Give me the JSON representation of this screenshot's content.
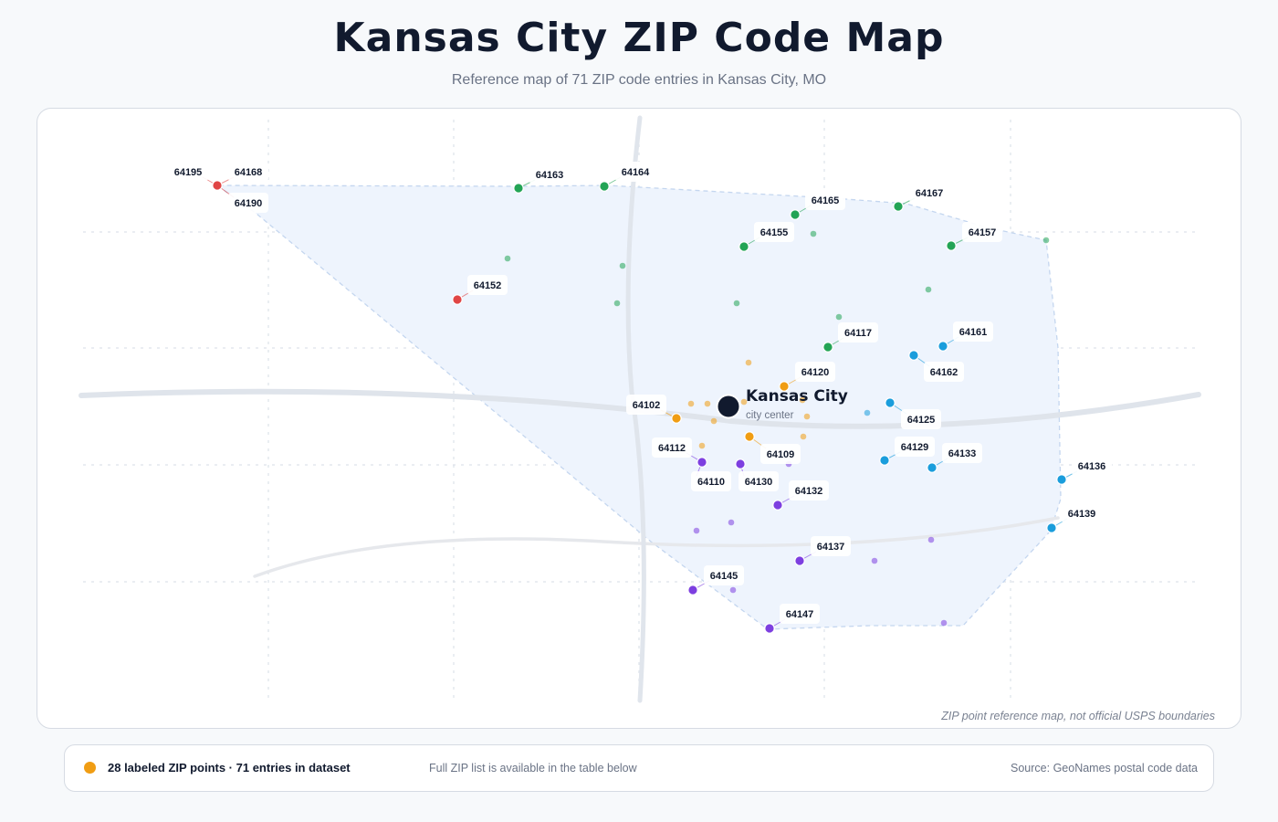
{
  "title": "Kansas City ZIP Code Map",
  "subtitle": "Reference map of 71 ZIP code entries in Kansas City, MO",
  "map": {
    "city_name": "Kansas City",
    "city_caption": "city center",
    "disclaimer": "ZIP point reference map, not official USPS boundaries",
    "colors": {
      "north_far": "#e04545",
      "north": "#23a455",
      "central": "#f09d13",
      "east": "#1a9ddc",
      "south": "#7d3fe0",
      "city": "#111a2e"
    },
    "labeled_points": [
      {
        "zip": "64195",
        "group": "north_far"
      },
      {
        "zip": "64168",
        "group": "north_far"
      },
      {
        "zip": "64190",
        "group": "north_far"
      },
      {
        "zip": "64163",
        "group": "north"
      },
      {
        "zip": "64164",
        "group": "north"
      },
      {
        "zip": "64165",
        "group": "north"
      },
      {
        "zip": "64167",
        "group": "north"
      },
      {
        "zip": "64155",
        "group": "north"
      },
      {
        "zip": "64157",
        "group": "north"
      },
      {
        "zip": "64152",
        "group": "north_far"
      },
      {
        "zip": "64117",
        "group": "north"
      },
      {
        "zip": "64161",
        "group": "east"
      },
      {
        "zip": "64162",
        "group": "east"
      },
      {
        "zip": "64120",
        "group": "central"
      },
      {
        "zip": "64102",
        "group": "central"
      },
      {
        "zip": "64125",
        "group": "east"
      },
      {
        "zip": "64112",
        "group": "south"
      },
      {
        "zip": "64109",
        "group": "central"
      },
      {
        "zip": "64129",
        "group": "east"
      },
      {
        "zip": "64133",
        "group": "east"
      },
      {
        "zip": "64136",
        "group": "east"
      },
      {
        "zip": "64110",
        "group": "south"
      },
      {
        "zip": "64130",
        "group": "south"
      },
      {
        "zip": "64132",
        "group": "south"
      },
      {
        "zip": "64139",
        "group": "east"
      },
      {
        "zip": "64137",
        "group": "south"
      },
      {
        "zip": "64145",
        "group": "south"
      },
      {
        "zip": "64147",
        "group": "south"
      }
    ]
  },
  "legend": {
    "summary": "28 labeled ZIP points · 71 entries in dataset",
    "note": "Full ZIP list is available in the table below",
    "source": "Source: GeoNames postal code data"
  }
}
